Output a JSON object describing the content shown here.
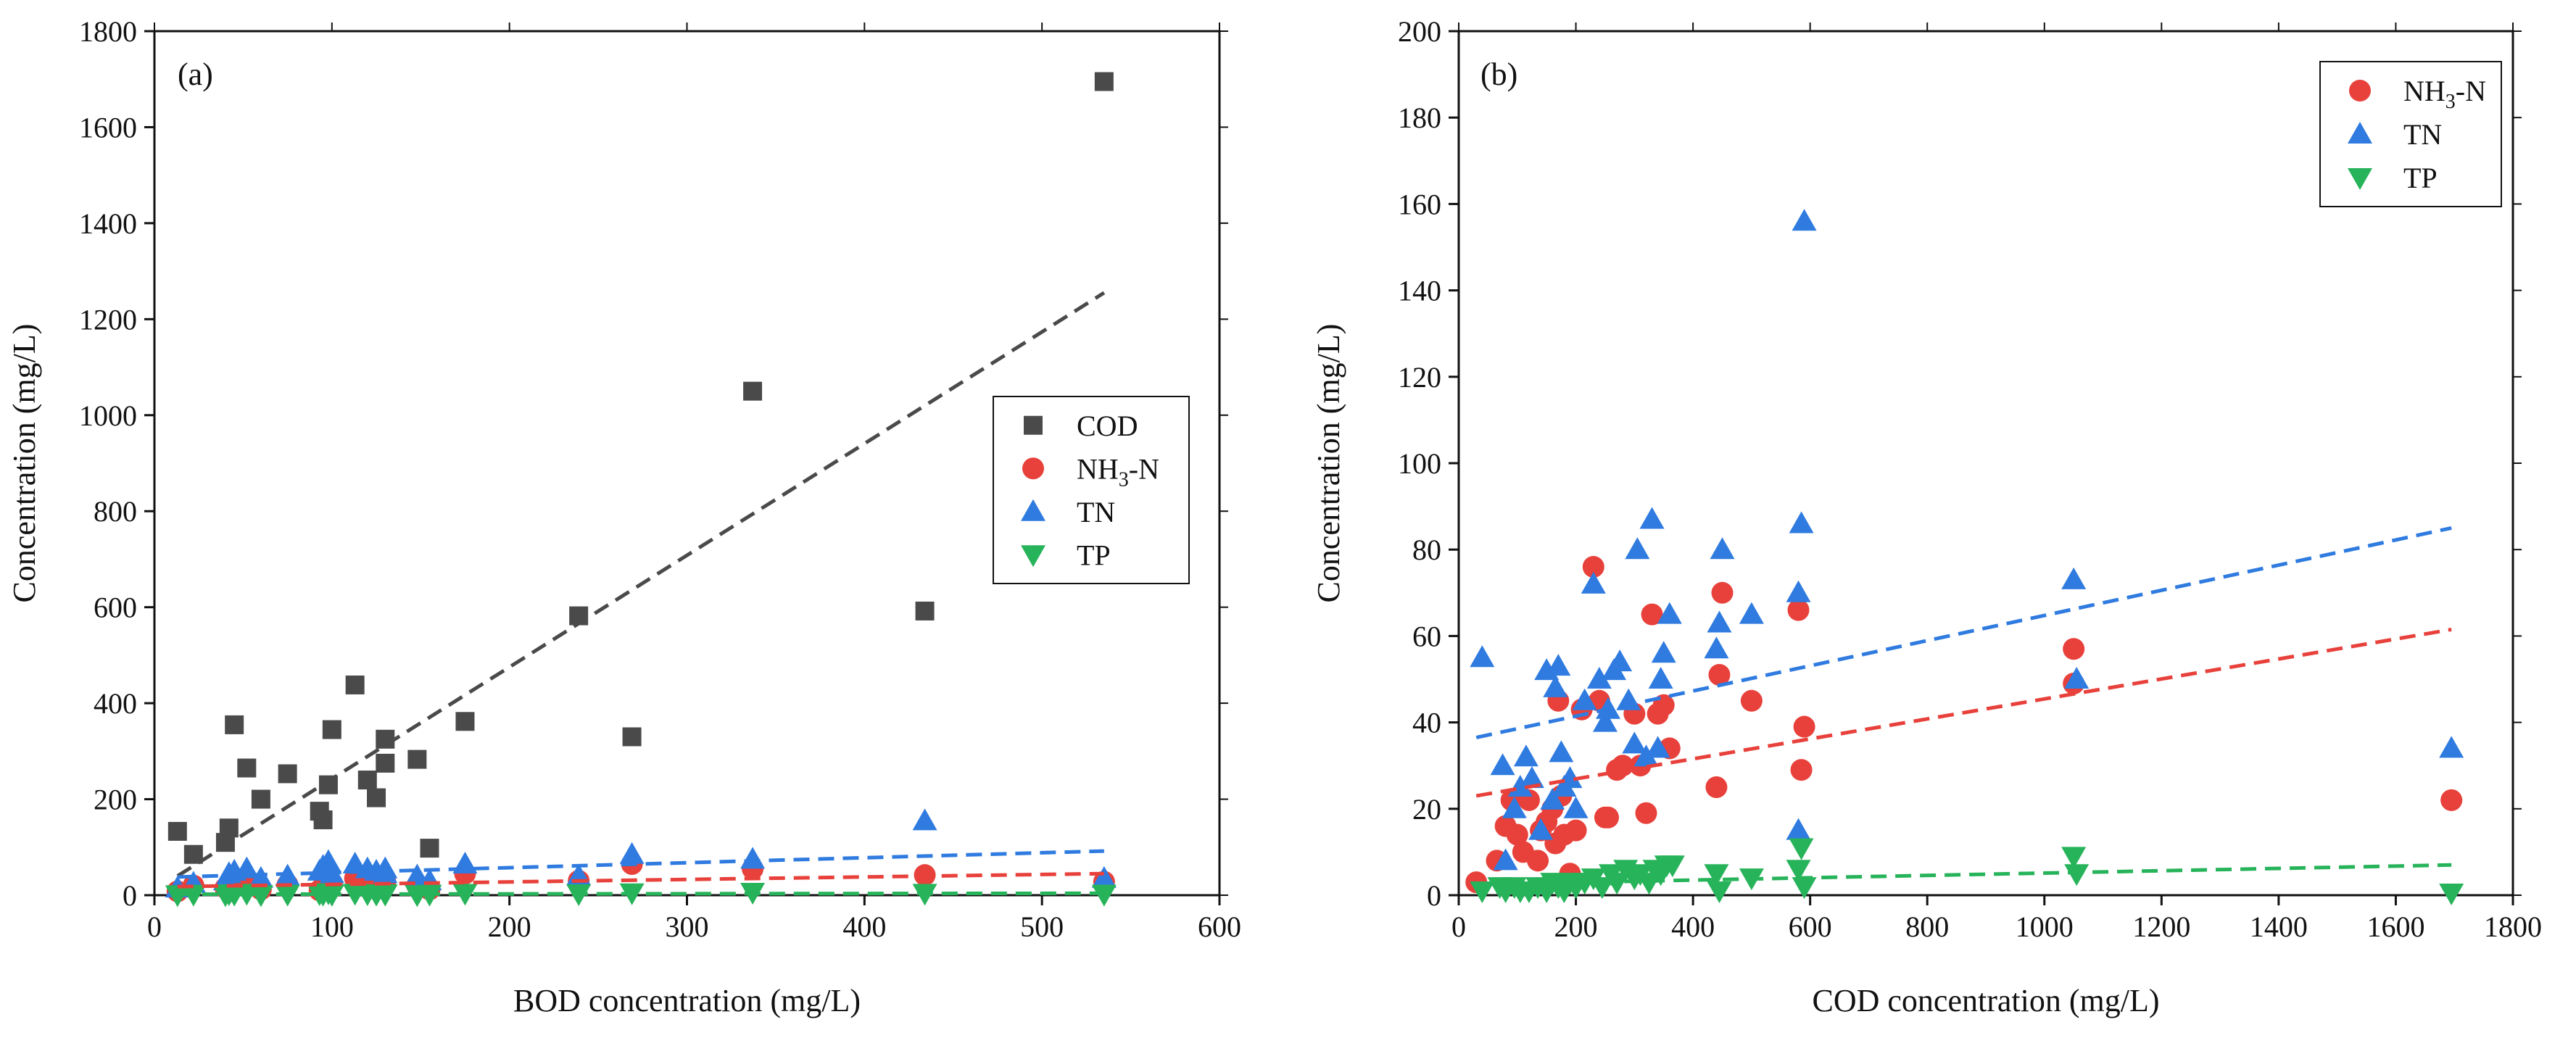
{
  "chart_data": [
    {
      "panel": "(a)",
      "type": "scatter",
      "xlabel": "BOD concentration (mg/L)",
      "ylabel": "Concentration (mg/L)",
      "xlim": [
        0,
        600
      ],
      "ylim": [
        0,
        1800
      ],
      "xticks": [
        0,
        100,
        200,
        300,
        400,
        500,
        600
      ],
      "yticks": [
        0,
        200,
        400,
        600,
        800,
        1000,
        1200,
        1400,
        1600,
        1800
      ],
      "x": [
        13,
        22,
        40,
        42,
        45,
        52,
        60,
        75,
        93,
        95,
        98,
        100,
        113,
        120,
        125,
        130,
        130,
        148,
        155,
        175,
        239,
        269,
        337,
        434,
        535
      ],
      "legend_position": "center-right",
      "series": [
        {
          "name": "COD",
          "marker": "square",
          "color": "#4a4a4a",
          "values": [
            133,
            85,
            110,
            140,
            355,
            265,
            200,
            253,
            175,
            157,
            230,
            345,
            438,
            240,
            203,
            275,
            325,
            283,
            98,
            362,
            582,
            330,
            1050,
            592,
            1695
          ]
        },
        {
          "name": "NH3-N",
          "marker": "circle",
          "color": "#e8403a",
          "values": [
            8,
            20,
            15,
            18,
            25,
            30,
            12,
            22,
            10,
            18,
            40,
            25,
            35,
            20,
            15,
            25,
            30,
            20,
            12,
            45,
            30,
            65,
            55,
            42,
            28
          ]
        },
        {
          "name": "TN",
          "marker": "triangle-up",
          "color": "#2f7be0",
          "values": [
            15,
            25,
            30,
            45,
            50,
            55,
            35,
            40,
            50,
            60,
            70,
            45,
            65,
            55,
            50,
            45,
            55,
            40,
            30,
            65,
            40,
            85,
            75,
            155,
            35
          ]
        },
        {
          "name": "TP",
          "marker": "triangle-down",
          "color": "#27b35a",
          "values": [
            1,
            2,
            1,
            3,
            2,
            4,
            1,
            2,
            3,
            2,
            5,
            2,
            4,
            3,
            2,
            3,
            2,
            1,
            2,
            4,
            3,
            5,
            6,
            4,
            2
          ]
        }
      ],
      "trendlines": [
        {
          "series": "COD",
          "color": "#4a4a4a",
          "x": [
            13,
            535
          ],
          "y": [
            40,
            1255
          ]
        },
        {
          "series": "TN",
          "color": "#2f7be0",
          "x": [
            13,
            535
          ],
          "y": [
            38,
            92
          ]
        },
        {
          "series": "NH3-N",
          "color": "#e8403a",
          "x": [
            13,
            535
          ],
          "y": [
            18,
            45
          ]
        },
        {
          "series": "TP",
          "color": "#27b35a",
          "x": [
            13,
            535
          ],
          "y": [
            2,
            4
          ]
        }
      ]
    },
    {
      "panel": "(b)",
      "type": "scatter",
      "xlabel": "COD concentration (mg/L)",
      "ylabel": "Concentration (mg/L)",
      "xlim": [
        0,
        1800
      ],
      "ylim": [
        0,
        200
      ],
      "xticks": [
        0,
        200,
        400,
        600,
        800,
        1000,
        1200,
        1400,
        1600,
        1800
      ],
      "yticks": [
        0,
        20,
        40,
        60,
        80,
        100,
        120,
        140,
        160,
        180,
        200
      ],
      "legend_position": "top-right",
      "series": [
        {
          "name": "NH3-N",
          "marker": "circle",
          "color": "#e8403a",
          "x": [
            30,
            65,
            80,
            90,
            100,
            110,
            120,
            135,
            140,
            150,
            160,
            165,
            170,
            175,
            180,
            190,
            200,
            210,
            230,
            240,
            250,
            255,
            270,
            280,
            300,
            310,
            320,
            330,
            340,
            350,
            360,
            440,
            445,
            450,
            500,
            580,
            585,
            590,
            1050,
            1050,
            1695
          ],
          "values": [
            3,
            8,
            16,
            22,
            14,
            10,
            22,
            8,
            15,
            17,
            20,
            12,
            45,
            23,
            14,
            5,
            15,
            43,
            76,
            45,
            18,
            18,
            29,
            30,
            42,
            30,
            19,
            65,
            42,
            44,
            34,
            25,
            51,
            70,
            45,
            66,
            29,
            39,
            57,
            49,
            22
          ]
        },
        {
          "name": "TN",
          "marker": "triangle-up",
          "color": "#2f7be0",
          "x": [
            40,
            75,
            80,
            95,
            105,
            115,
            125,
            140,
            150,
            160,
            165,
            170,
            175,
            180,
            190,
            200,
            215,
            230,
            240,
            250,
            255,
            265,
            275,
            290,
            300,
            305,
            320,
            330,
            340,
            345,
            350,
            360,
            440,
            445,
            450,
            500,
            580,
            580,
            585,
            590,
            1050,
            1055,
            1695
          ],
          "values": [
            55,
            30,
            8,
            20,
            25,
            32,
            27,
            15,
            52,
            22,
            48,
            53,
            33,
            25,
            27,
            20,
            45,
            72,
            50,
            40,
            43,
            52,
            54,
            45,
            35,
            80,
            32,
            87,
            34,
            50,
            56,
            65,
            57,
            63,
            80,
            65,
            15,
            70,
            86,
            156,
            73,
            50,
            34
          ]
        },
        {
          "name": "TP",
          "marker": "triangle-down",
          "color": "#27b35a",
          "x": [
            40,
            70,
            80,
            95,
            105,
            120,
            135,
            150,
            160,
            170,
            180,
            190,
            200,
            215,
            230,
            245,
            260,
            270,
            285,
            300,
            310,
            325,
            335,
            345,
            355,
            365,
            440,
            445,
            500,
            580,
            585,
            590,
            1050,
            1055,
            1695
          ],
          "values": [
            1,
            2,
            1,
            2,
            1,
            1,
            2,
            1,
            3,
            2,
            1,
            3,
            2,
            3,
            4,
            2,
            5,
            3,
            6,
            4,
            5,
            3,
            6,
            5,
            7,
            7,
            5,
            1,
            4,
            6,
            11,
            2,
            9,
            5,
            0.5
          ]
        }
      ],
      "trendlines": [
        {
          "series": "TN",
          "color": "#2f7be0",
          "x": [
            30,
            1695
          ],
          "y": [
            36.5,
            85
          ]
        },
        {
          "series": "NH3-N",
          "color": "#e8403a",
          "x": [
            30,
            1695
          ],
          "y": [
            23,
            61.5
          ]
        },
        {
          "series": "TP",
          "color": "#27b35a",
          "x": [
            30,
            1695
          ],
          "y": [
            2.5,
            7
          ]
        }
      ]
    }
  ],
  "legend_a": {
    "items": [
      {
        "series": "COD",
        "label": "COD",
        "subscript": ""
      },
      {
        "series": "NH3-N",
        "label": "NH",
        "subscript": "3",
        "suffix": "-N"
      },
      {
        "series": "TN",
        "label": "TN",
        "subscript": ""
      },
      {
        "series": "TP",
        "label": "TP",
        "subscript": ""
      }
    ]
  },
  "legend_b": {
    "items": [
      {
        "series": "NH3-N",
        "label": "NH",
        "subscript": "3",
        "suffix": "-N"
      },
      {
        "series": "TN",
        "label": "TN",
        "subscript": ""
      },
      {
        "series": "TP",
        "label": "TP",
        "subscript": ""
      }
    ]
  }
}
